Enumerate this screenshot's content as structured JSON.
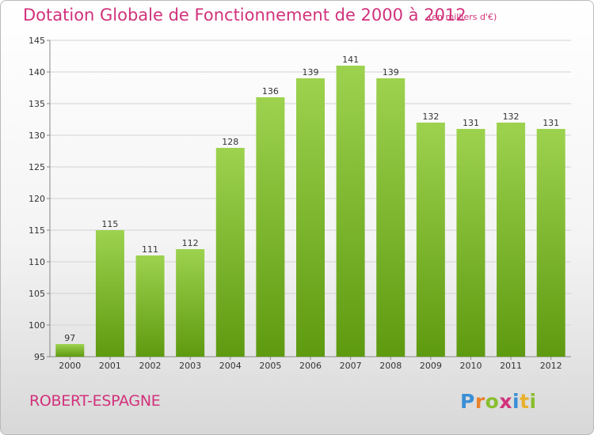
{
  "header": {
    "title": "Dotation Globale de Fonctionnement de 2000 à 2012",
    "subtitle": "(en milliers d'€)"
  },
  "footer": {
    "commune": "ROBERT-ESPAGNE",
    "logo_text": "Proxiti"
  },
  "colors": {
    "title": "#d1327b",
    "bar_top": "#9dd24f",
    "bar_bottom": "#5e9a10",
    "grid": "#d2d2d2"
  },
  "chart_data": {
    "type": "bar",
    "categories": [
      "2000",
      "2001",
      "2002",
      "2003",
      "2004",
      "2005",
      "2006",
      "2007",
      "2008",
      "2009",
      "2010",
      "2011",
      "2012"
    ],
    "values": [
      97,
      115,
      111,
      112,
      128,
      136,
      139,
      141,
      139,
      132,
      131,
      132,
      131
    ],
    "title": "Dotation Globale de Fonctionnement de 2000 à 2012",
    "subtitle": "(en milliers d'€)",
    "xlabel": "",
    "ylabel": "",
    "ylim": [
      95,
      145
    ],
    "yticks": [
      95,
      100,
      105,
      110,
      115,
      120,
      125,
      130,
      135,
      140,
      145
    ],
    "grid": true,
    "legend": "none"
  }
}
